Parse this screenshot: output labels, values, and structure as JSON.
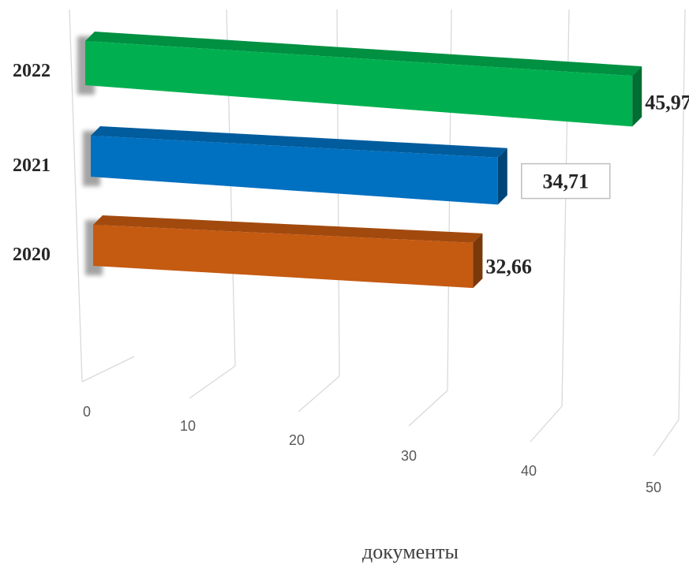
{
  "chart_data": {
    "type": "bar",
    "orientation": "horizontal",
    "style": "3d",
    "categories": [
      "2020",
      "2021",
      "2022"
    ],
    "values": [
      32.66,
      34.71,
      45.97
    ],
    "value_labels": [
      "32,66",
      "34,71",
      "45,97"
    ],
    "colors": {
      "2020": "#c55a11",
      "2021": "#0070c0",
      "2022": "#00b050"
    },
    "xlabel": "документы",
    "xlim": [
      0,
      50
    ],
    "xticks": [
      "0",
      "10",
      "20",
      "30",
      "40",
      "50"
    ],
    "grid": true,
    "legend": "none"
  }
}
